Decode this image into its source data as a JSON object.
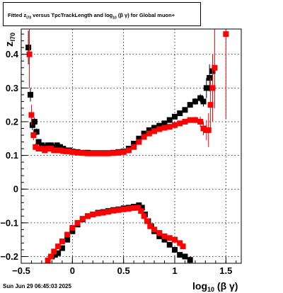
{
  "header": {
    "title_parts": [
      "Fitted  z",
      "I70",
      "  versus TpcTrackLength and log",
      "10",
      " (β  γ) for Global muon+"
    ]
  },
  "footer": {
    "datestamp": "Sun Jun 29 06:45:03 2025"
  },
  "colors": {
    "series_black": "#000000",
    "series_red": "#ff0000",
    "grid": "#000000",
    "axis": "#000000"
  },
  "chart_data": {
    "type": "scatter",
    "xlabel_main": "log",
    "xlabel_sub": "10",
    "xlabel_tail": " (β γ)",
    "ylabel_main": "z",
    "ylabel_sub": "I70",
    "xlim": [
      -0.5,
      1.65
    ],
    "ylim": [
      -0.22,
      0.475
    ],
    "grid": true,
    "x_ticks": [
      -0.5,
      0,
      0.5,
      1,
      1.5
    ],
    "x_tick_labels": [
      "−0.5",
      "0",
      "0.5",
      "1",
      "1.5"
    ],
    "y_ticks": [
      -0.2,
      -0.1,
      0,
      0.1,
      0.2,
      0.3,
      0.4
    ],
    "y_tick_labels": [
      "−0.2",
      "−0.1",
      "0",
      "0.1",
      "0.2",
      "0.3",
      "0.4"
    ],
    "series": [
      {
        "color": "#000000",
        "upper": [
          [
            -0.43,
            0.42,
            0.05
          ],
          [
            -0.41,
            0.28,
            0.02
          ],
          [
            -0.39,
            0.19,
            0.015
          ],
          [
            -0.37,
            0.2,
            0.012
          ],
          [
            -0.35,
            0.17,
            0.01
          ],
          [
            -0.33,
            0.14,
            0.006
          ],
          [
            -0.3,
            0.13,
            0.005
          ],
          [
            -0.27,
            0.125,
            0.004
          ],
          [
            -0.24,
            0.13,
            0.004
          ],
          [
            -0.21,
            0.13,
            0.003
          ],
          [
            -0.18,
            0.125,
            0.003
          ],
          [
            -0.15,
            0.13,
            0.003
          ],
          [
            -0.12,
            0.125,
            0.003
          ],
          [
            -0.09,
            0.12,
            0.002
          ],
          [
            -0.06,
            0.115,
            0.002
          ],
          [
            -0.03,
            0.115,
            0.002
          ],
          [
            0.0,
            0.112,
            0.002
          ],
          [
            0.05,
            0.11,
            0.002
          ],
          [
            0.1,
            0.108,
            0.002
          ],
          [
            0.15,
            0.108,
            0.002
          ],
          [
            0.2,
            0.107,
            0.002
          ],
          [
            0.25,
            0.107,
            0.002
          ],
          [
            0.3,
            0.107,
            0.002
          ],
          [
            0.35,
            0.107,
            0.002
          ],
          [
            0.4,
            0.108,
            0.002
          ],
          [
            0.45,
            0.11,
            0.002
          ],
          [
            0.5,
            0.112,
            0.002
          ],
          [
            0.55,
            0.12,
            0.002
          ],
          [
            0.6,
            0.135,
            0.002
          ],
          [
            0.65,
            0.15,
            0.002
          ],
          [
            0.7,
            0.165,
            0.003
          ],
          [
            0.75,
            0.175,
            0.003
          ],
          [
            0.8,
            0.182,
            0.003
          ],
          [
            0.85,
            0.188,
            0.003
          ],
          [
            0.9,
            0.195,
            0.004
          ],
          [
            0.95,
            0.205,
            0.004
          ],
          [
            1.0,
            0.215,
            0.005
          ],
          [
            1.05,
            0.225,
            0.006
          ],
          [
            1.1,
            0.235,
            0.007
          ],
          [
            1.15,
            0.25,
            0.008
          ],
          [
            1.2,
            0.26,
            0.01
          ],
          [
            1.25,
            0.27,
            0.012
          ],
          [
            1.28,
            0.26,
            0.015
          ],
          [
            1.31,
            0.3,
            0.03
          ],
          [
            1.34,
            0.33,
            0.04
          ],
          [
            1.37,
            0.35,
            0.05
          ]
        ],
        "lower": [
          [
            -0.2,
            -0.2,
            0.004
          ],
          [
            -0.17,
            -0.195,
            0.004
          ],
          [
            -0.14,
            -0.19,
            0.004
          ],
          [
            -0.1,
            -0.175,
            0.003
          ],
          [
            -0.05,
            -0.15,
            0.003
          ],
          [
            0.0,
            -0.125,
            0.002
          ],
          [
            0.05,
            -0.105,
            0.002
          ],
          [
            0.1,
            -0.09,
            0.002
          ],
          [
            0.15,
            -0.08,
            0.002
          ],
          [
            0.2,
            -0.075,
            0.002
          ],
          [
            0.25,
            -0.07,
            0.002
          ],
          [
            0.3,
            -0.068,
            0.002
          ],
          [
            0.35,
            -0.065,
            0.002
          ],
          [
            0.4,
            -0.062,
            0.002
          ],
          [
            0.45,
            -0.06,
            0.002
          ],
          [
            0.5,
            -0.057,
            0.002
          ],
          [
            0.55,
            -0.055,
            0.002
          ],
          [
            0.6,
            -0.052,
            0.002
          ],
          [
            0.65,
            -0.048,
            0.002
          ],
          [
            0.68,
            -0.055,
            0.002
          ],
          [
            0.71,
            -0.075,
            0.002
          ],
          [
            0.74,
            -0.095,
            0.002
          ],
          [
            0.77,
            -0.11,
            0.003
          ],
          [
            0.8,
            -0.125,
            0.003
          ],
          [
            0.85,
            -0.14,
            0.003
          ],
          [
            0.9,
            -0.15,
            0.003
          ],
          [
            0.95,
            -0.165,
            0.004
          ],
          [
            1.0,
            -0.18,
            0.005
          ],
          [
            1.05,
            -0.195,
            0.006
          ],
          [
            1.1,
            -0.2,
            0.008
          ],
          [
            1.15,
            -0.21,
            0.01
          ]
        ]
      },
      {
        "color": "#ff0000",
        "upper": [
          [
            -0.42,
            0.4,
            0.1
          ],
          [
            -0.4,
            0.22,
            0.03
          ],
          [
            -0.38,
            0.16,
            0.015
          ],
          [
            -0.36,
            0.125,
            0.01
          ],
          [
            -0.33,
            0.12,
            0.006
          ],
          [
            -0.3,
            0.12,
            0.005
          ],
          [
            -0.27,
            0.115,
            0.004
          ],
          [
            -0.24,
            0.12,
            0.004
          ],
          [
            -0.21,
            0.12,
            0.003
          ],
          [
            -0.18,
            0.115,
            0.003
          ],
          [
            -0.15,
            0.115,
            0.003
          ],
          [
            -0.12,
            0.115,
            0.003
          ],
          [
            -0.09,
            0.113,
            0.002
          ],
          [
            -0.06,
            0.112,
            0.002
          ],
          [
            -0.03,
            0.112,
            0.002
          ],
          [
            0.0,
            0.11,
            0.002
          ],
          [
            0.05,
            0.108,
            0.002
          ],
          [
            0.1,
            0.107,
            0.002
          ],
          [
            0.15,
            0.106,
            0.002
          ],
          [
            0.2,
            0.106,
            0.002
          ],
          [
            0.25,
            0.106,
            0.002
          ],
          [
            0.3,
            0.106,
            0.002
          ],
          [
            0.35,
            0.106,
            0.002
          ],
          [
            0.4,
            0.107,
            0.002
          ],
          [
            0.45,
            0.108,
            0.002
          ],
          [
            0.5,
            0.11,
            0.002
          ],
          [
            0.55,
            0.115,
            0.002
          ],
          [
            0.6,
            0.125,
            0.002
          ],
          [
            0.65,
            0.14,
            0.002
          ],
          [
            0.7,
            0.155,
            0.003
          ],
          [
            0.75,
            0.165,
            0.003
          ],
          [
            0.8,
            0.172,
            0.003
          ],
          [
            0.85,
            0.178,
            0.003
          ],
          [
            0.9,
            0.182,
            0.004
          ],
          [
            0.95,
            0.185,
            0.004
          ],
          [
            1.0,
            0.19,
            0.005
          ],
          [
            1.05,
            0.195,
            0.006
          ],
          [
            1.1,
            0.2,
            0.007
          ],
          [
            1.15,
            0.205,
            0.008
          ],
          [
            1.2,
            0.205,
            0.01
          ],
          [
            1.25,
            0.2,
            0.015
          ],
          [
            1.28,
            0.18,
            0.02
          ],
          [
            1.31,
            0.175,
            0.03
          ],
          [
            1.33,
            0.175,
            0.05
          ],
          [
            1.35,
            0.25,
            0.08
          ],
          [
            1.37,
            0.3,
            0.1
          ],
          [
            1.39,
            0.36,
            0.12
          ],
          [
            1.5,
            0.46,
            0.25
          ]
        ],
        "lower": [
          [
            -0.24,
            -0.22,
            0.005
          ],
          [
            -0.21,
            -0.2,
            0.004
          ],
          [
            -0.18,
            -0.185,
            0.004
          ],
          [
            -0.14,
            -0.17,
            0.003
          ],
          [
            -0.1,
            -0.155,
            0.003
          ],
          [
            -0.05,
            -0.135,
            0.002
          ],
          [
            0.0,
            -0.115,
            0.002
          ],
          [
            0.05,
            -0.1,
            0.002
          ],
          [
            0.1,
            -0.088,
            0.002
          ],
          [
            0.15,
            -0.08,
            0.002
          ],
          [
            0.2,
            -0.075,
            0.002
          ],
          [
            0.25,
            -0.072,
            0.002
          ],
          [
            0.3,
            -0.07,
            0.002
          ],
          [
            0.35,
            -0.067,
            0.002
          ],
          [
            0.4,
            -0.064,
            0.002
          ],
          [
            0.45,
            -0.062,
            0.002
          ],
          [
            0.5,
            -0.06,
            0.002
          ],
          [
            0.55,
            -0.058,
            0.002
          ],
          [
            0.6,
            -0.056,
            0.002
          ],
          [
            0.64,
            -0.055,
            0.002
          ],
          [
            0.67,
            -0.065,
            0.002
          ],
          [
            0.7,
            -0.08,
            0.002
          ],
          [
            0.73,
            -0.095,
            0.002
          ],
          [
            0.76,
            -0.11,
            0.003
          ],
          [
            0.8,
            -0.12,
            0.003
          ],
          [
            0.85,
            -0.13,
            0.003
          ],
          [
            0.9,
            -0.14,
            0.003
          ],
          [
            0.95,
            -0.145,
            0.004
          ],
          [
            1.0,
            -0.15,
            0.004
          ],
          [
            1.05,
            -0.16,
            0.005
          ],
          [
            1.08,
            -0.17,
            0.006
          ]
        ]
      }
    ]
  }
}
